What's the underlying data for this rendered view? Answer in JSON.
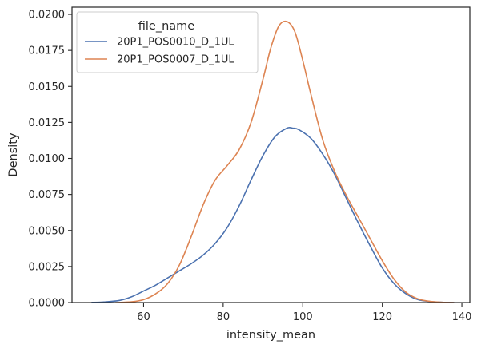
{
  "chart_data": {
    "type": "line",
    "title": "",
    "xlabel": "intensity_mean",
    "ylabel": "Density",
    "xlim": [
      42,
      142
    ],
    "ylim": [
      0,
      0.0205
    ],
    "xticks": [
      60,
      80,
      100,
      120,
      140
    ],
    "xtick_labels": [
      "60",
      "80",
      "100",
      "120",
      "140"
    ],
    "yticks": [
      0,
      0.0025,
      0.005,
      0.0075,
      0.01,
      0.0125,
      0.015,
      0.0175,
      0.02
    ],
    "ytick_labels": [
      "0.0000",
      "0.0025",
      "0.0050",
      "0.0075",
      "0.0100",
      "0.0125",
      "0.0150",
      "0.0175",
      "0.0200"
    ],
    "grid": false,
    "legend": {
      "title": "file_name",
      "placement": "top-left"
    },
    "series": [
      {
        "name": "20P1_POS0010_D_1UL",
        "color": "#4c72b0",
        "x": [
          47,
          50,
          54,
          57,
          60,
          63,
          66,
          69,
          72,
          75,
          78,
          81,
          84,
          87,
          90,
          93,
          96,
          97.5,
          99,
          102,
          105,
          108,
          111,
          114,
          117,
          120,
          123,
          126,
          129,
          132,
          135,
          138
        ],
        "y": [
          1e-05,
          4e-05,
          0.00015,
          0.0004,
          0.0008,
          0.0012,
          0.0017,
          0.0022,
          0.0027,
          0.0033,
          0.0041,
          0.0052,
          0.0067,
          0.0085,
          0.0102,
          0.0115,
          0.0121,
          0.0121,
          0.012,
          0.0114,
          0.0103,
          0.0089,
          0.0072,
          0.0055,
          0.0039,
          0.0024,
          0.0013,
          0.0006,
          0.0002,
          7e-05,
          2e-05,
          0.0
        ],
        "extend": "both"
      },
      {
        "name": "20P1_POS0007_D_1UL",
        "color": "#dd8452",
        "x": [
          53,
          57,
          60,
          63,
          66,
          69,
          72,
          75,
          78,
          81,
          84,
          87,
          90,
          92,
          94,
          96,
          98,
          100,
          102,
          105,
          108,
          111,
          114,
          117,
          120,
          123,
          126,
          129,
          132,
          135,
          138
        ],
        "y": [
          0.0,
          5e-05,
          0.0002,
          0.0006,
          0.0013,
          0.0026,
          0.0046,
          0.0068,
          0.0085,
          0.0095,
          0.0106,
          0.0125,
          0.0155,
          0.0177,
          0.0192,
          0.0195,
          0.0188,
          0.0168,
          0.0145,
          0.0113,
          0.0091,
          0.0074,
          0.0059,
          0.0044,
          0.0029,
          0.0016,
          0.0007,
          0.00025,
          8e-05,
          2e-05,
          0.0
        ],
        "extend": "both"
      }
    ]
  }
}
